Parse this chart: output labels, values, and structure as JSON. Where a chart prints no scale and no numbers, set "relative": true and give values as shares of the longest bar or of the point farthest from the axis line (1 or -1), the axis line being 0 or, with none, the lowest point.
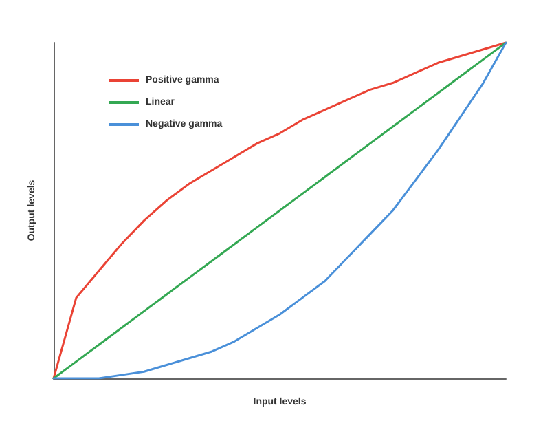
{
  "chart_data": {
    "type": "line",
    "relative": true,
    "xlabel": "Input levels",
    "ylabel": "Output levels",
    "categories": [
      null,
      null,
      null,
      null,
      null,
      null,
      null,
      null,
      null,
      null,
      null,
      null,
      null,
      null,
      null,
      null,
      null,
      null,
      null,
      null,
      null
    ],
    "series": [
      {
        "name": "Positive gamma",
        "color": "#ea4335",
        "values": [
          0,
          0.24,
          0.32,
          0.4,
          0.47,
          0.53,
          0.58,
          0.62,
          0.66,
          0.7,
          0.73,
          0.77,
          0.8,
          0.83,
          0.86,
          0.88,
          0.91,
          0.94,
          0.96,
          0.98,
          1
        ]
      },
      {
        "name": "Linear",
        "color": "#34a853",
        "values": [
          0,
          0.05,
          0.1,
          0.15,
          0.2,
          0.25,
          0.3,
          0.35,
          0.4,
          0.45,
          0.5,
          0.55,
          0.6,
          0.65,
          0.7,
          0.75,
          0.8,
          0.85,
          0.9,
          0.95,
          1
        ]
      },
      {
        "name": "Negative gamma",
        "color": "#4a90d9",
        "values": [
          0,
          0,
          0,
          0.01,
          0.02,
          0.04,
          0.06,
          0.08,
          0.11,
          0.15,
          0.19,
          0.24,
          0.29,
          0.36,
          0.43,
          0.5,
          0.59,
          0.68,
          0.78,
          0.88,
          1
        ]
      }
    ],
    "legend": "top left",
    "grid": false,
    "marker": "none",
    "line_style": "solid"
  }
}
